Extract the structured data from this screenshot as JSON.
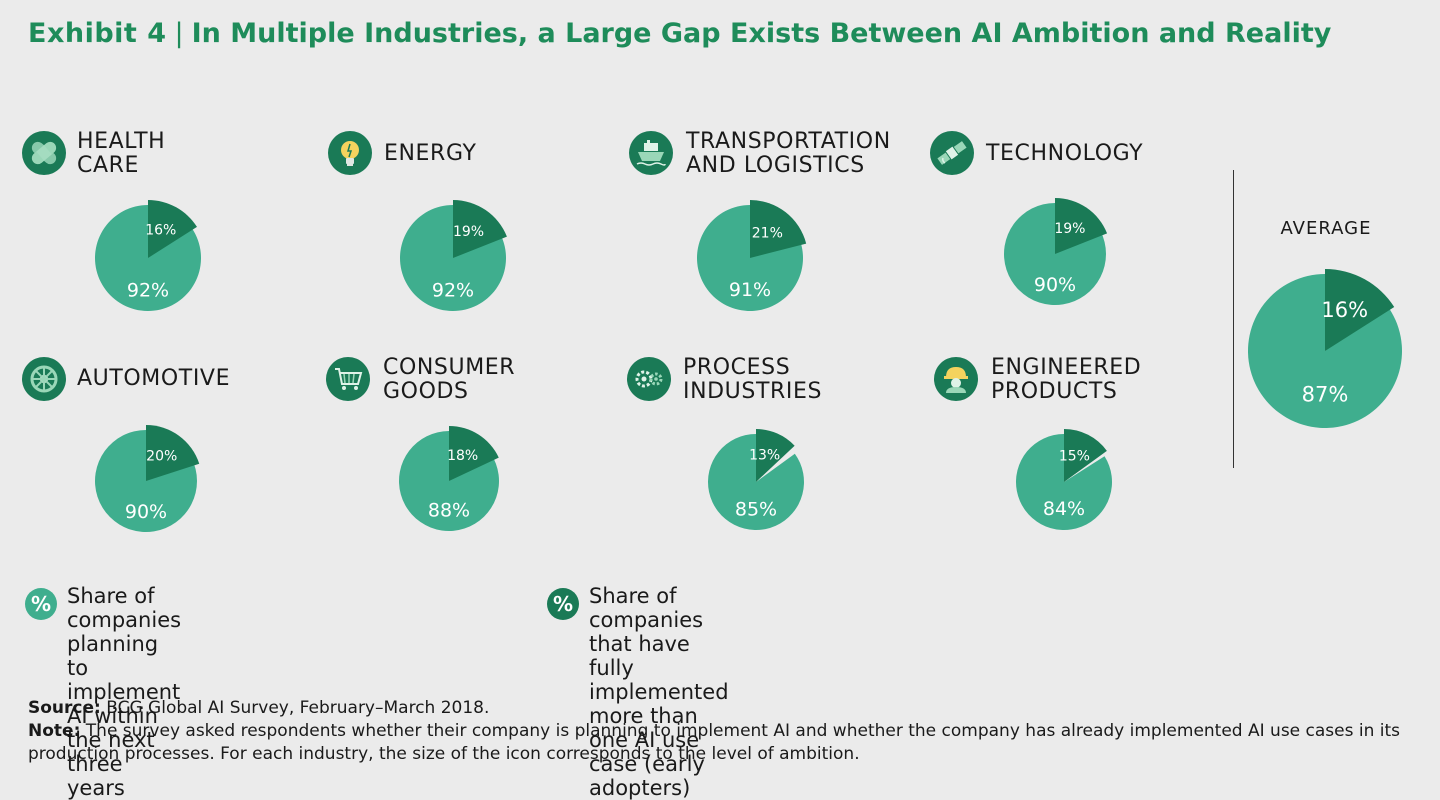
{
  "title": {
    "prefix": "Exhibit 4",
    "separator": "|",
    "text": "In Multiple Industries, a Large Gap Exists Between AI Ambition and Reality"
  },
  "colors": {
    "ambition": "#3fae8e",
    "adopters": "#1a7a56",
    "title": "#1e8c5a"
  },
  "chart_data": {
    "type": "pie",
    "series_names": [
      "Share of companies planning to implement AI within the next three years",
      "Share of companies that have fully implemented more than one AI use case (early adopters)"
    ],
    "industries": [
      {
        "name": "HEALTH CARE",
        "label_lines": [
          "HEALTH",
          "CARE"
        ],
        "icon": "bandage-icon",
        "ambition": 92,
        "adopters": 16
      },
      {
        "name": "ENERGY",
        "label_lines": [
          "ENERGY"
        ],
        "icon": "lightbulb-icon",
        "ambition": 92,
        "adopters": 19
      },
      {
        "name": "TRANSPORTATION AND LOGISTICS",
        "label_lines": [
          "TRANSPORTATION",
          "AND LOGISTICS"
        ],
        "icon": "ship-icon",
        "ambition": 91,
        "adopters": 21
      },
      {
        "name": "TECHNOLOGY",
        "label_lines": [
          "TECHNOLOGY"
        ],
        "icon": "satellite-icon",
        "ambition": 90,
        "adopters": 19
      },
      {
        "name": "AUTOMOTIVE",
        "label_lines": [
          "AUTOMOTIVE"
        ],
        "icon": "wheel-icon",
        "ambition": 90,
        "adopters": 20
      },
      {
        "name": "CONSUMER GOODS",
        "label_lines": [
          "CONSUMER",
          "GOODS"
        ],
        "icon": "shopping-cart-icon",
        "ambition": 88,
        "adopters": 18
      },
      {
        "name": "PROCESS INDUSTRIES",
        "label_lines": [
          "PROCESS",
          "INDUSTRIES"
        ],
        "icon": "gears-icon",
        "ambition": 85,
        "adopters": 13
      },
      {
        "name": "ENGINEERED PRODUCTS",
        "label_lines": [
          "ENGINEERED",
          "PRODUCTS"
        ],
        "icon": "hardhat-worker-icon",
        "ambition": 84,
        "adopters": 15
      }
    ],
    "average": {
      "label": "AVERAGE",
      "ambition": 87,
      "adopters": 16
    },
    "legend_placement": "bottom"
  },
  "legend": {
    "symbol": "%",
    "ambition_text": "Share of companies planning to\nimplement AI within the next three years",
    "adopters_text": "Share of companies that have fully implemented\nmore than one AI use case (early adopters)"
  },
  "footer": {
    "source_label": "Source:",
    "source_text": "BCG Global AI Survey, February–March 2018.",
    "note_label": "Note:",
    "note_text": "The survey asked respondents whether their company is planning to implement AI and whether the company has already implemented AI use cases in its production processes. For each industry, the size of the icon corresponds to the level of ambition."
  }
}
